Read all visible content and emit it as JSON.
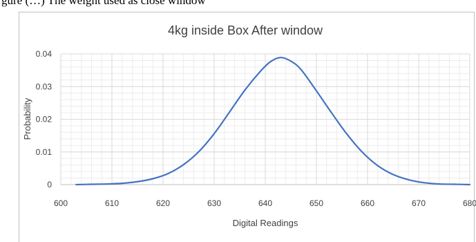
{
  "caption": "gure (…) The weight used as close window",
  "chart_data": {
    "type": "line",
    "title": "4kg inside Box After window",
    "xlabel": "Digital Readings",
    "ylabel": "Probability",
    "xlim": [
      600,
      680
    ],
    "ylim": [
      0,
      0.04
    ],
    "x_ticks": [
      "600",
      "610",
      "620",
      "630",
      "640",
      "650",
      "660",
      "670",
      "680"
    ],
    "y_ticks": [
      "0",
      "0.01",
      "0.02",
      "0.03",
      "0.04"
    ],
    "grid": true,
    "minor_grid": true,
    "legend": "none",
    "series_color": "#4472c4",
    "series": [
      {
        "x": [
          603,
          606,
          609,
          612,
          615,
          618,
          621,
          624,
          627,
          630,
          633,
          636,
          639,
          641,
          643,
          645,
          647,
          650,
          653,
          656,
          659,
          662,
          665,
          668,
          671,
          674,
          677,
          680
        ],
        "values": [
          0.0,
          0.0001,
          0.0002,
          0.0004,
          0.0009,
          0.0018,
          0.0034,
          0.0061,
          0.0101,
          0.0156,
          0.0222,
          0.0289,
          0.0346,
          0.0376,
          0.0389,
          0.0378,
          0.0352,
          0.0287,
          0.0219,
          0.0154,
          0.0099,
          0.0058,
          0.0031,
          0.0015,
          0.0006,
          0.0002,
          0.0001,
          0.0
        ]
      }
    ]
  }
}
